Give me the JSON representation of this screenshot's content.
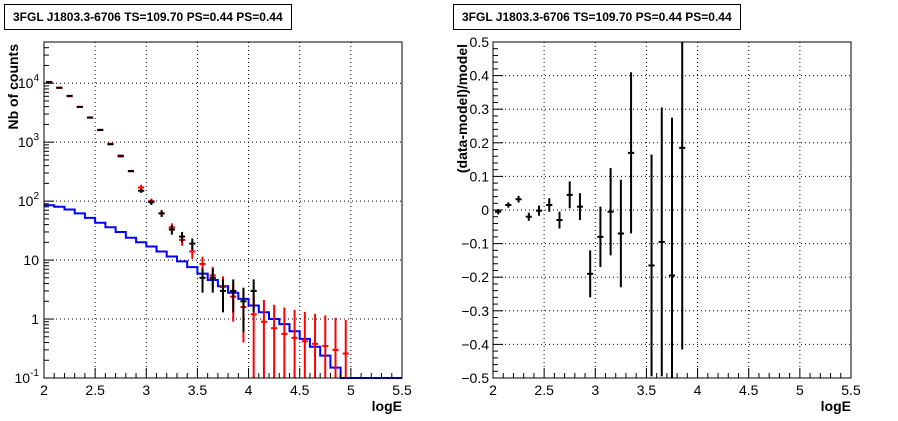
{
  "panels": [
    {
      "title": "3FGL J1803.3-6706 TS=109.70 PS=0.44 PS=0.44"
    },
    {
      "title": "3FGL J1803.3-6706 TS=109.70 PS=0.44 PS=0.44"
    }
  ],
  "chart_data": [
    {
      "type": "line",
      "title": "3FGL J1803.3-6706 TS=109.70 PS=0.44 PS=0.44",
      "xlabel": "logE",
      "ylabel": "Nb of counts",
      "xlim": [
        2,
        5.5
      ],
      "ylim": [
        0.1,
        50000
      ],
      "yscale": "log",
      "grid": true,
      "xticks": [
        "2",
        "2.5",
        "3",
        "3.5",
        "4",
        "4.5",
        "5",
        "5.5"
      ],
      "yticks": [
        {
          "base": "10",
          "exp": "4",
          "value": 10000
        },
        {
          "base": "10",
          "exp": "3",
          "value": 1000
        },
        {
          "base": "10",
          "exp": "2",
          "value": 100
        },
        {
          "base": "10",
          "exp": "",
          "value": 10
        },
        {
          "base": "1",
          "exp": "",
          "value": 1
        },
        {
          "base": "10",
          "exp": "-1",
          "value": 0.1
        }
      ],
      "bin_width": 0.1,
      "series": [
        {
          "color": "#0000ff",
          "style": "step",
          "x": [
            2.05,
            2.15,
            2.25,
            2.35,
            2.45,
            2.55,
            2.65,
            2.75,
            2.85,
            2.95,
            3.05,
            3.15,
            3.25,
            3.35,
            3.45,
            3.55,
            3.65,
            3.75,
            3.85,
            3.95,
            4.05,
            4.15,
            4.25,
            4.35,
            4.45,
            4.55,
            4.65,
            4.75,
            4.85,
            4.95,
            5.05,
            5.15,
            5.25,
            5.35,
            5.45
          ],
          "values": [
            85,
            80,
            72,
            62,
            52,
            43,
            36,
            30,
            24,
            20,
            17,
            14,
            11.5,
            9.5,
            7.6,
            5.9,
            4.6,
            3.6,
            2.8,
            2.2,
            1.7,
            1.3,
            1.0,
            0.82,
            0.62,
            0.46,
            0.34,
            0.24,
            0.15,
            0.1,
            0.1,
            0.1,
            0.1,
            0.1,
            0.1
          ]
        },
        {
          "color": "#ff0000",
          "style": "errorbar",
          "x": [
            2.05,
            2.15,
            2.25,
            2.35,
            2.45,
            2.55,
            2.65,
            2.75,
            2.85,
            2.95,
            3.05,
            3.15,
            3.25,
            3.35,
            3.45,
            3.55,
            3.65,
            3.75,
            3.85,
            3.95,
            4.05,
            4.15,
            4.25,
            4.35,
            4.45,
            4.55,
            4.65,
            4.75,
            4.85,
            4.95
          ],
          "values": [
            10500,
            8300,
            6000,
            4000,
            2600,
            1600,
            940,
            570,
            320,
            170,
            100,
            62,
            36,
            22,
            14,
            8.6,
            5.5,
            3.5,
            2.4,
            1.6,
            1.2,
            0.9,
            0.7,
            0.56,
            0.48,
            0.42,
            0.38,
            0.35,
            0.3,
            0.26
          ],
          "err_low": [
            0,
            0,
            0,
            0,
            0,
            0,
            0,
            0,
            0,
            20,
            10,
            8,
            6,
            4.5,
            3.5,
            2.8,
            2.2,
            1.8,
            1.5,
            1.2,
            1.1,
            0.88,
            0.69,
            0.55,
            0.47,
            0.41,
            0.37,
            0.34,
            0.29,
            0.25
          ],
          "err_high": [
            0,
            0,
            0,
            0,
            0,
            0,
            0,
            0,
            0,
            20,
            10,
            8,
            6,
            4.5,
            3.5,
            2.8,
            2.2,
            1.8,
            1.6,
            1.4,
            1.3,
            1.2,
            1.05,
            1.0,
            0.95,
            0.9,
            0.85,
            0.8,
            0.75,
            0.7
          ]
        },
        {
          "color": "#000000",
          "style": "errorbar",
          "x": [
            2.05,
            2.15,
            2.25,
            2.35,
            2.45,
            2.55,
            2.65,
            2.75,
            2.85,
            2.95,
            3.05,
            3.15,
            3.25,
            3.35,
            3.45,
            3.55,
            3.65,
            3.75,
            3.85,
            3.95,
            4.05
          ],
          "values": [
            10400,
            8400,
            6100,
            3950,
            2620,
            1620,
            920,
            590,
            325,
            150,
            96,
            62,
            33,
            25,
            19,
            5,
            5,
            3,
            3,
            2,
            3
          ],
          "err_low": [
            0,
            0,
            0,
            0,
            0,
            0,
            0,
            0,
            0,
            12,
            10,
            8,
            6,
            5,
            4.3,
            2.2,
            2.2,
            1.7,
            1.7,
            1.4,
            1.7
          ],
          "err_high": [
            0,
            0,
            0,
            0,
            0,
            0,
            0,
            0,
            0,
            12,
            10,
            8,
            6,
            5,
            4.3,
            2.2,
            2.2,
            1.7,
            1.7,
            1.4,
            1.7
          ]
        }
      ]
    },
    {
      "type": "scatter",
      "title": "3FGL J1803.3-6706 TS=109.70 PS=0.44 PS=0.44",
      "xlabel": "logE",
      "ylabel": "(data-model)/model",
      "xlim": [
        2,
        5.5
      ],
      "ylim": [
        -0.5,
        0.5
      ],
      "grid": true,
      "xticks": [
        "2",
        "2.5",
        "3",
        "3.5",
        "4",
        "4.5",
        "5",
        "5.5"
      ],
      "yticks": [
        "0.5",
        "0.4",
        "0.3",
        "0.2",
        "0.1",
        "0",
        "−0.1",
        "−0.2",
        "−0.3",
        "−0.4",
        "−0.5"
      ],
      "bin_width": 0.1,
      "series": [
        {
          "color": "#000000",
          "style": "errorbar",
          "x": [
            2.05,
            2.15,
            2.25,
            2.35,
            2.45,
            2.55,
            2.65,
            2.75,
            2.85,
            2.95,
            3.05,
            3.15,
            3.25,
            3.35,
            3.55,
            3.65,
            3.75,
            3.85
          ],
          "values": [
            -0.005,
            0.015,
            0.032,
            -0.02,
            -0.002,
            0.015,
            -0.03,
            0.045,
            0.01,
            -0.19,
            -0.08,
            -0.005,
            -0.07,
            0.17,
            -0.165,
            -0.095,
            -0.195,
            0.185
          ],
          "err": [
            0.008,
            0.008,
            0.01,
            0.012,
            0.015,
            0.02,
            0.025,
            0.04,
            0.04,
            0.07,
            0.09,
            0.13,
            0.16,
            0.24,
            0.33,
            0.4,
            0.47,
            0.6
          ]
        }
      ]
    }
  ]
}
